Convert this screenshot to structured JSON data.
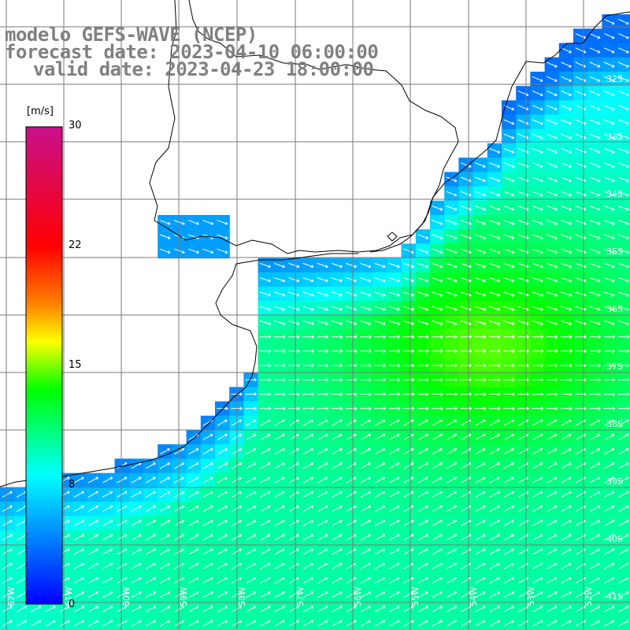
{
  "title": {
    "model": "modelo GEFS-WAVE (NCEP)",
    "forecast": "forecast date: 2023-04-10 06:00:00",
    "valid": "valid date: 2023-04-23 18:00:00"
  },
  "colorbar": {
    "unit": "[m/s]",
    "ticks": [
      "30",
      "22",
      "15",
      "8",
      "0"
    ],
    "tick_values": [
      30,
      22,
      15,
      8,
      0
    ],
    "min": 0,
    "max": 30
  },
  "map": {
    "lat_labels": [
      "32S",
      "33S",
      "34S",
      "35S",
      "36S",
      "37S",
      "38S",
      "39S",
      "40S",
      "41S"
    ],
    "lon_labels": [
      "62W",
      "61W",
      "60W",
      "59W",
      "58W",
      "57W",
      "56W",
      "55W",
      "54W",
      "53W",
      "52W"
    ],
    "field": "wind speed",
    "colors": {
      "land": "#ffffff",
      "grid": "#7a7a7a",
      "coast": "#000000",
      "arrow": "#ffffff"
    }
  }
}
